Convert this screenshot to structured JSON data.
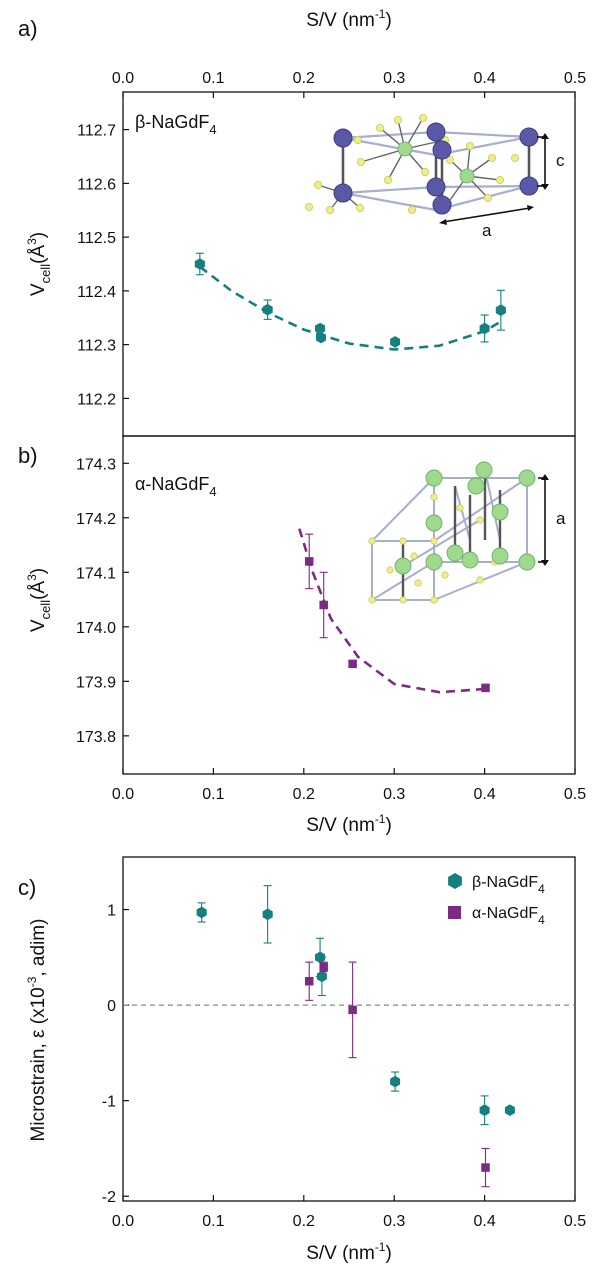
{
  "panels": {
    "a": {
      "label": "a)",
      "series_label": "β-NaGdF",
      "series_sub": "4"
    },
    "b": {
      "label": "b)",
      "series_label": "α-NaGdF",
      "series_sub": "4"
    },
    "c": {
      "label": "c)"
    }
  },
  "colors": {
    "beta": "#167F7F",
    "alpha": "#7D2A85",
    "reference": "#888888",
    "gd_atom": "#5A59A8",
    "na_atom": "#9ED98E",
    "f_atom": "#EEEE88",
    "frame": "#A6AFCC"
  },
  "icons": {
    "beta_marker": "hexagon",
    "alpha_marker": "square"
  },
  "chart_data": [
    {
      "type": "scatter",
      "panel": "a",
      "xlabel_top": {
        "main": "S/V (nm",
        "sup": "-1",
        "end": ")"
      },
      "ylabel": {
        "main": "V",
        "sub": "cell",
        "unit": "(Å",
        "sup": "3",
        "end": ")"
      },
      "xlim": [
        0.0,
        0.5
      ],
      "ylim": [
        112.13,
        112.77
      ],
      "xticks": [
        "0.0",
        "0.1",
        "0.2",
        "0.3",
        "0.4",
        "0.5"
      ],
      "yticks": [
        "112.2",
        "112.3",
        "112.4",
        "112.5",
        "112.6",
        "112.7"
      ],
      "series": [
        {
          "marker": "hexagon",
          "points": [
            {
              "x": 0.085,
              "y": 112.45,
              "err": 0.02
            },
            {
              "x": 0.16,
              "y": 112.365,
              "err": 0.018
            },
            {
              "x": 0.218,
              "y": 112.33,
              "err": 0.005
            },
            {
              "x": 0.219,
              "y": 112.313,
              "err": 0.005
            },
            {
              "x": 0.301,
              "y": 112.305,
              "err": 0.005
            },
            {
              "x": 0.4,
              "y": 112.33,
              "err": 0.025
            },
            {
              "x": 0.418,
              "y": 112.364,
              "err": 0.037
            }
          ],
          "fit": [
            {
              "x": 0.085,
              "y": 112.445
            },
            {
              "x": 0.12,
              "y": 112.4
            },
            {
              "x": 0.16,
              "y": 112.36
            },
            {
              "x": 0.2,
              "y": 112.328
            },
            {
              "x": 0.25,
              "y": 112.302
            },
            {
              "x": 0.3,
              "y": 112.291
            },
            {
              "x": 0.35,
              "y": 112.298
            },
            {
              "x": 0.4,
              "y": 112.325
            },
            {
              "x": 0.42,
              "y": 112.345
            }
          ]
        }
      ],
      "inset": {
        "dimension_labels": [
          "c",
          "a"
        ]
      }
    },
    {
      "type": "scatter",
      "panel": "b",
      "xlabel": {
        "main": "S/V (nm",
        "sup": "-1",
        "end": ")"
      },
      "ylabel": {
        "main": "V",
        "sub": "cell",
        "unit": "(Å",
        "sup": "3",
        "end": ")"
      },
      "xlim": [
        0.0,
        0.5
      ],
      "ylim": [
        173.73,
        174.35
      ],
      "xticks": [
        "0.0",
        "0.1",
        "0.2",
        "0.3",
        "0.4",
        "0.5"
      ],
      "yticks": [
        "173.8",
        "173.9",
        "174.0",
        "174.1",
        "174.2",
        "174.3"
      ],
      "series": [
        {
          "marker": "square",
          "points": [
            {
              "x": 0.206,
              "y": 174.12,
              "err": 0.05
            },
            {
              "x": 0.222,
              "y": 174.04,
              "err": 0.06
            },
            {
              "x": 0.254,
              "y": 173.932,
              "err": 0.004
            },
            {
              "x": 0.401,
              "y": 173.888,
              "err": 0.005
            }
          ],
          "fit": [
            {
              "x": 0.195,
              "y": 174.18
            },
            {
              "x": 0.21,
              "y": 174.1
            },
            {
              "x": 0.23,
              "y": 174.015
            },
            {
              "x": 0.26,
              "y": 173.945
            },
            {
              "x": 0.3,
              "y": 173.895
            },
            {
              "x": 0.35,
              "y": 173.88
            },
            {
              "x": 0.4,
              "y": 173.886
            }
          ]
        }
      ],
      "inset": {
        "dimension_labels": [
          "a"
        ]
      }
    },
    {
      "type": "scatter",
      "panel": "c",
      "xlabel": {
        "main": "S/V (nm",
        "sup": "-1",
        "end": ")"
      },
      "ylabel": {
        "main": "Microstrain, ε (x10",
        "sup": "-3",
        "end": ", adim)"
      },
      "xlim": [
        0.0,
        0.5
      ],
      "ylim": [
        -2.05,
        1.55
      ],
      "xticks": [
        "0.0",
        "0.1",
        "0.2",
        "0.3",
        "0.4",
        "0.5"
      ],
      "yticks": [
        "-2",
        "-1",
        "0",
        "1"
      ],
      "reference_line": 0,
      "legend": [
        {
          "text": "β-NaGdF",
          "sub": "4",
          "marker": "hexagon"
        },
        {
          "text": "α-NaGdF",
          "sub": "4",
          "marker": "square"
        }
      ],
      "series": [
        {
          "marker": "hexagon",
          "points": [
            {
              "x": 0.087,
              "y": 0.97,
              "err": 0.1
            },
            {
              "x": 0.16,
              "y": 0.95,
              "err": 0.3
            },
            {
              "x": 0.218,
              "y": 0.5,
              "err": 0.2
            },
            {
              "x": 0.22,
              "y": 0.3,
              "err": 0.2
            },
            {
              "x": 0.301,
              "y": -0.8,
              "err": 0.1
            },
            {
              "x": 0.4,
              "y": -1.1,
              "err": 0.15
            },
            {
              "x": 0.428,
              "y": -1.1,
              "err": 0.0
            }
          ]
        },
        {
          "marker": "square",
          "points": [
            {
              "x": 0.206,
              "y": 0.25,
              "err": 0.2
            },
            {
              "x": 0.222,
              "y": 0.4,
              "err": 0.05
            },
            {
              "x": 0.254,
              "y": -0.05,
              "err": 0.5
            },
            {
              "x": 0.401,
              "y": -1.7,
              "err": 0.2
            }
          ]
        }
      ]
    }
  ]
}
